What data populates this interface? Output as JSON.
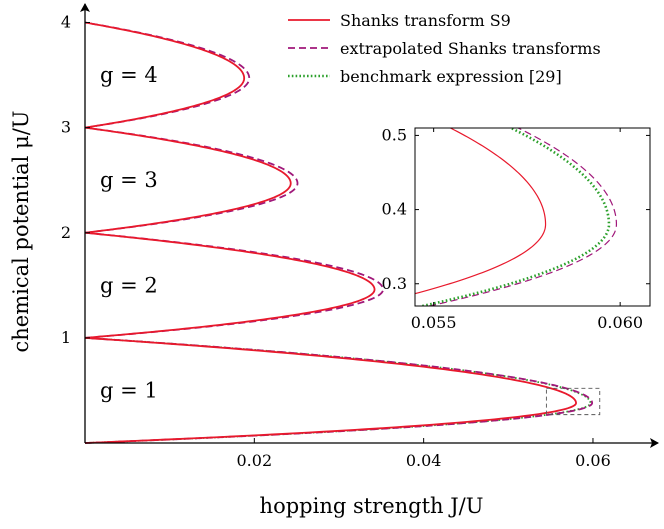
{
  "chart_data": [
    {
      "type": "line",
      "xlabel": "hopping strength J/U",
      "ylabel": "chemical potential μ/U",
      "xlim": [
        0,
        0.0665
      ],
      "ylim": [
        0,
        4.1
      ],
      "x_ticks": [
        "0.02",
        "0.04",
        "0.06"
      ],
      "x_tick_values": [
        0.02,
        0.04,
        0.06
      ],
      "y_ticks": [
        "1",
        "2",
        "3",
        "4"
      ],
      "y_tick_values": [
        1,
        2,
        3,
        4
      ],
      "region_labels": [
        {
          "text": "g = 1",
          "mu": 0.5
        },
        {
          "text": "g = 2",
          "mu": 1.5
        },
        {
          "text": "g = 3",
          "mu": 2.5
        },
        {
          "text": "g = 4",
          "mu": 3.5
        }
      ],
      "legend": {
        "position": "top-right",
        "entries": [
          {
            "label": "Shanks transform S9",
            "series": "shanks"
          },
          {
            "label": "extrapolated Shanks transforms",
            "series": "extrapolated"
          },
          {
            "label": "benchmark expression [29]",
            "series": "benchmark"
          }
        ]
      },
      "series": [
        {
          "name": "Shanks transform S9",
          "key": "shanks",
          "color": "#e8192c",
          "dash": "solid",
          "lobes": [
            {
              "mu_low": 0,
              "mu_high": 1,
              "mu_tip": 0.38,
              "J_tip": 0.058
            },
            {
              "mu_low": 1,
              "mu_high": 2,
              "mu_tip": 1.46,
              "J_tip": 0.0342
            },
            {
              "mu_low": 2,
              "mu_high": 3,
              "mu_tip": 2.47,
              "J_tip": 0.0243
            },
            {
              "mu_low": 3,
              "mu_high": 4,
              "mu_tip": 3.47,
              "J_tip": 0.0188
            }
          ]
        },
        {
          "name": "extrapolated Shanks transforms",
          "key": "extrapolated",
          "color": "#a0187a",
          "dash": "dashed",
          "lobes": [
            {
              "mu_low": 0,
              "mu_high": 1,
              "mu_tip": 0.38,
              "J_tip": 0.0599
            },
            {
              "mu_low": 1,
              "mu_high": 2,
              "mu_tip": 1.46,
              "J_tip": 0.0352
            },
            {
              "mu_low": 2,
              "mu_high": 3,
              "mu_tip": 2.47,
              "J_tip": 0.0251
            },
            {
              "mu_low": 3,
              "mu_high": 4,
              "mu_tip": 3.47,
              "J_tip": 0.0194
            }
          ]
        },
        {
          "name": "benchmark expression [29]",
          "key": "benchmark",
          "color": "#2ca02c",
          "dash": "dotted",
          "lobes": [
            {
              "mu_low": 0,
              "mu_high": 1,
              "mu_tip": 0.38,
              "J_tip": 0.0597
            }
          ]
        }
      ],
      "zoom_box": {
        "xlim": [
          0.0545,
          0.0608
        ],
        "ylim": [
          0.27,
          0.52
        ]
      }
    },
    {
      "type": "line",
      "inset": true,
      "xlim": [
        0.0545,
        0.0608
      ],
      "ylim": [
        0.27,
        0.51
      ],
      "x_ticks": [
        "0.055",
        "0.060"
      ],
      "x_tick_values": [
        0.055,
        0.06
      ],
      "y_ticks": [
        "0.3",
        "0.4",
        "0.5"
      ],
      "y_tick_values": [
        0.3,
        0.4,
        0.5
      ],
      "series": [
        {
          "key": "shanks",
          "color": "#e8192c",
          "dash": "solid",
          "mu_low": 0,
          "mu_high": 1,
          "mu_tip": 0.38,
          "J_tip": 0.058
        },
        {
          "key": "extrapolated",
          "color": "#a0187a",
          "dash": "dashed",
          "mu_low": 0,
          "mu_high": 1,
          "mu_tip": 0.38,
          "J_tip": 0.0599
        },
        {
          "key": "benchmark",
          "color": "#2ca02c",
          "dash": "dotted",
          "mu_low": 0,
          "mu_high": 1,
          "mu_tip": 0.38,
          "J_tip": 0.0597
        }
      ]
    }
  ]
}
